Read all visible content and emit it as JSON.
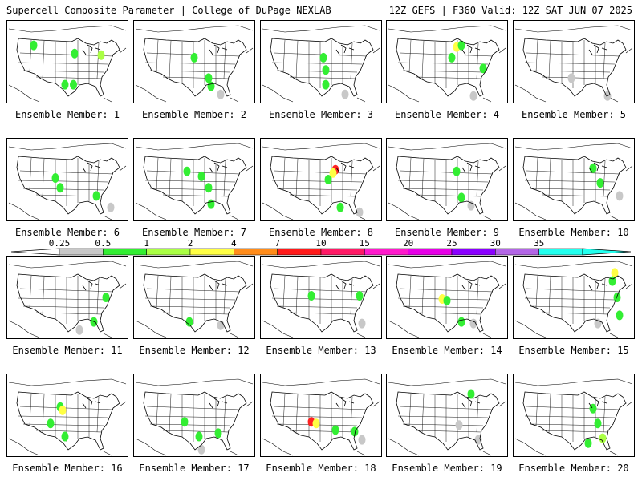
{
  "header": {
    "left": "Supercell Composite Parameter | College of DuPage NEXLAB",
    "right": "12Z GEFS | F360 Valid: 12Z SAT JUN 07 2025"
  },
  "member_prefix": "Ensemble Member:",
  "members": [
    {
      "id": "1",
      "blobs": [
        [
          0.22,
          0.3,
          "#33ee33"
        ],
        [
          0.56,
          0.4,
          "#33ee33"
        ],
        [
          0.78,
          0.42,
          "#aaff44"
        ],
        [
          0.55,
          0.78,
          "#33ee33"
        ],
        [
          0.48,
          0.78,
          "#33ee33"
        ]
      ]
    },
    {
      "id": "2",
      "blobs": [
        [
          0.5,
          0.45,
          "#33ee33"
        ],
        [
          0.62,
          0.7,
          "#33ee33"
        ],
        [
          0.64,
          0.8,
          "#33ee33"
        ],
        [
          0.72,
          0.9,
          "#c8c8c8"
        ]
      ]
    },
    {
      "id": "3",
      "blobs": [
        [
          0.52,
          0.45,
          "#33ee33"
        ],
        [
          0.54,
          0.6,
          "#33ee33"
        ],
        [
          0.54,
          0.78,
          "#33ee33"
        ],
        [
          0.7,
          0.9,
          "#c8c8c8"
        ]
      ]
    },
    {
      "id": "4",
      "blobs": [
        [
          0.58,
          0.32,
          "#ffff44"
        ],
        [
          0.62,
          0.3,
          "#33ee33"
        ],
        [
          0.54,
          0.45,
          "#33ee33"
        ],
        [
          0.8,
          0.58,
          "#33ee33"
        ],
        [
          0.72,
          0.92,
          "#c8c8c8"
        ]
      ]
    },
    {
      "id": "5",
      "blobs": [
        [
          0.48,
          0.7,
          "#c8c8c8"
        ],
        [
          0.78,
          0.92,
          "#c8c8c8"
        ]
      ]
    },
    {
      "id": "6",
      "blobs": [
        [
          0.4,
          0.48,
          "#33ee33"
        ],
        [
          0.44,
          0.6,
          "#33ee33"
        ],
        [
          0.74,
          0.7,
          "#33ee33"
        ],
        [
          0.86,
          0.84,
          "#c8c8c8"
        ]
      ]
    },
    {
      "id": "7",
      "blobs": [
        [
          0.44,
          0.4,
          "#33ee33"
        ],
        [
          0.56,
          0.46,
          "#33ee33"
        ],
        [
          0.62,
          0.6,
          "#33ee33"
        ],
        [
          0.64,
          0.8,
          "#33ee33"
        ]
      ]
    },
    {
      "id": "8",
      "blobs": [
        [
          0.62,
          0.38,
          "#ff2222"
        ],
        [
          0.6,
          0.42,
          "#ffff44"
        ],
        [
          0.56,
          0.5,
          "#33ee33"
        ],
        [
          0.66,
          0.84,
          "#33ee33"
        ],
        [
          0.82,
          0.9,
          "#c8c8c8"
        ]
      ]
    },
    {
      "id": "9",
      "blobs": [
        [
          0.58,
          0.4,
          "#33ee33"
        ],
        [
          0.62,
          0.72,
          "#33ee33"
        ],
        [
          0.7,
          0.82,
          "#c8c8c8"
        ]
      ]
    },
    {
      "id": "10",
      "blobs": [
        [
          0.66,
          0.36,
          "#33ee33"
        ],
        [
          0.72,
          0.54,
          "#33ee33"
        ],
        [
          0.88,
          0.7,
          "#c8c8c8"
        ]
      ]
    },
    {
      "id": "11",
      "blobs": [
        [
          0.82,
          0.5,
          "#33ee33"
        ],
        [
          0.72,
          0.8,
          "#33ee33"
        ],
        [
          0.6,
          0.9,
          "#c8c8c8"
        ]
      ]
    },
    {
      "id": "12",
      "blobs": [
        [
          0.46,
          0.8,
          "#33ee33"
        ],
        [
          0.72,
          0.84,
          "#c8c8c8"
        ]
      ]
    },
    {
      "id": "13",
      "blobs": [
        [
          0.42,
          0.48,
          "#33ee33"
        ],
        [
          0.82,
          0.48,
          "#33ee33"
        ],
        [
          0.84,
          0.82,
          "#c8c8c8"
        ]
      ]
    },
    {
      "id": "14",
      "blobs": [
        [
          0.46,
          0.52,
          "#ffff44"
        ],
        [
          0.5,
          0.54,
          "#33ee33"
        ],
        [
          0.62,
          0.8,
          "#33ee33"
        ],
        [
          0.72,
          0.82,
          "#c8c8c8"
        ]
      ]
    },
    {
      "id": "15",
      "blobs": [
        [
          0.84,
          0.2,
          "#ffff44"
        ],
        [
          0.82,
          0.3,
          "#33ee33"
        ],
        [
          0.86,
          0.5,
          "#33ee33"
        ],
        [
          0.88,
          0.72,
          "#33ee33"
        ],
        [
          0.7,
          0.82,
          "#c8c8c8"
        ]
      ]
    },
    {
      "id": "16",
      "blobs": [
        [
          0.44,
          0.4,
          "#33ee33"
        ],
        [
          0.46,
          0.44,
          "#ffff44"
        ],
        [
          0.36,
          0.6,
          "#33ee33"
        ],
        [
          0.48,
          0.76,
          "#33ee33"
        ]
      ]
    },
    {
      "id": "17",
      "blobs": [
        [
          0.42,
          0.58,
          "#33ee33"
        ],
        [
          0.54,
          0.76,
          "#33ee33"
        ],
        [
          0.7,
          0.72,
          "#33ee33"
        ],
        [
          0.56,
          0.92,
          "#c8c8c8"
        ]
      ]
    },
    {
      "id": "18",
      "blobs": [
        [
          0.42,
          0.58,
          "#ff2222"
        ],
        [
          0.46,
          0.6,
          "#ffff44"
        ],
        [
          0.62,
          0.68,
          "#33ee33"
        ],
        [
          0.78,
          0.7,
          "#33ee33"
        ],
        [
          0.84,
          0.8,
          "#c8c8c8"
        ]
      ]
    },
    {
      "id": "19",
      "blobs": [
        [
          0.7,
          0.24,
          "#33ee33"
        ],
        [
          0.6,
          0.62,
          "#c8c8c8"
        ],
        [
          0.76,
          0.8,
          "#c8c8c8"
        ]
      ]
    },
    {
      "id": "20",
      "blobs": [
        [
          0.66,
          0.42,
          "#33ee33"
        ],
        [
          0.7,
          0.6,
          "#33ee33"
        ],
        [
          0.74,
          0.78,
          "#aaff44"
        ],
        [
          0.62,
          0.84,
          "#33ee33"
        ]
      ]
    }
  ],
  "colorbar": {
    "labels": [
      "0.25",
      "0.5",
      "1",
      "2",
      "4",
      "7",
      "10",
      "15",
      "20",
      "25",
      "30",
      "35"
    ],
    "colors": [
      "#c8c8c8",
      "#33ee33",
      "#aaff44",
      "#ffff44",
      "#ff8c1a",
      "#ff1a1a",
      "#ff1a66",
      "#ff1acc",
      "#e600e6",
      "#8a00ff",
      "#b366e6",
      "#22ffee"
    ]
  }
}
